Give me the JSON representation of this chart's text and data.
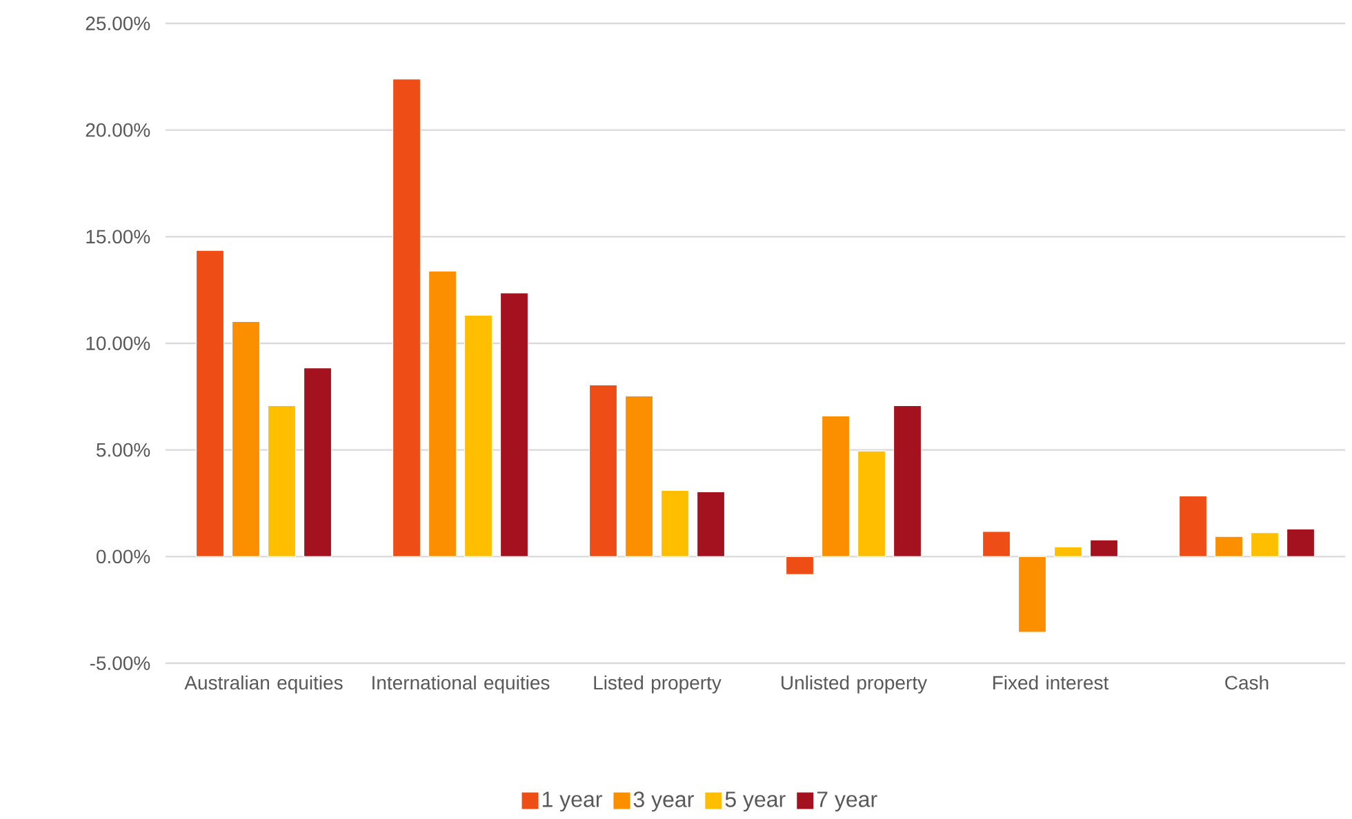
{
  "chart_data": {
    "type": "bar",
    "categories": [
      "Australian equities",
      "International equities",
      "Listed property",
      "Unlisted property",
      "Fixed interest",
      "Cash"
    ],
    "series": [
      {
        "name": "1 year",
        "color": "#ee4e16",
        "values": [
          14.36,
          22.39,
          8.05,
          -0.84,
          1.18,
          2.84
        ]
      },
      {
        "name": "3 year",
        "color": "#fb8f00",
        "values": [
          11.02,
          13.39,
          7.53,
          6.59,
          -3.55,
          0.94
        ]
      },
      {
        "name": "5 year",
        "color": "#ffbf00",
        "values": [
          7.08,
          11.32,
          3.1,
          4.95,
          0.45,
          1.12
        ]
      },
      {
        "name": "7 year",
        "color": "#a5121f",
        "values": [
          8.85,
          12.36,
          3.04,
          7.08,
          0.78,
          1.29
        ]
      }
    ],
    "ylim": [
      -5,
      25
    ],
    "yticks": [
      {
        "value": -5,
        "label": "-5.00%"
      },
      {
        "value": 0,
        "label": "0.00%"
      },
      {
        "value": 5,
        "label": "5.00%"
      },
      {
        "value": 10,
        "label": "10.00%"
      },
      {
        "value": 15,
        "label": "15.00%"
      },
      {
        "value": 20,
        "label": "20.00%"
      },
      {
        "value": 25,
        "label": "25.00%"
      }
    ],
    "grid": "y",
    "legend": "bottom"
  }
}
